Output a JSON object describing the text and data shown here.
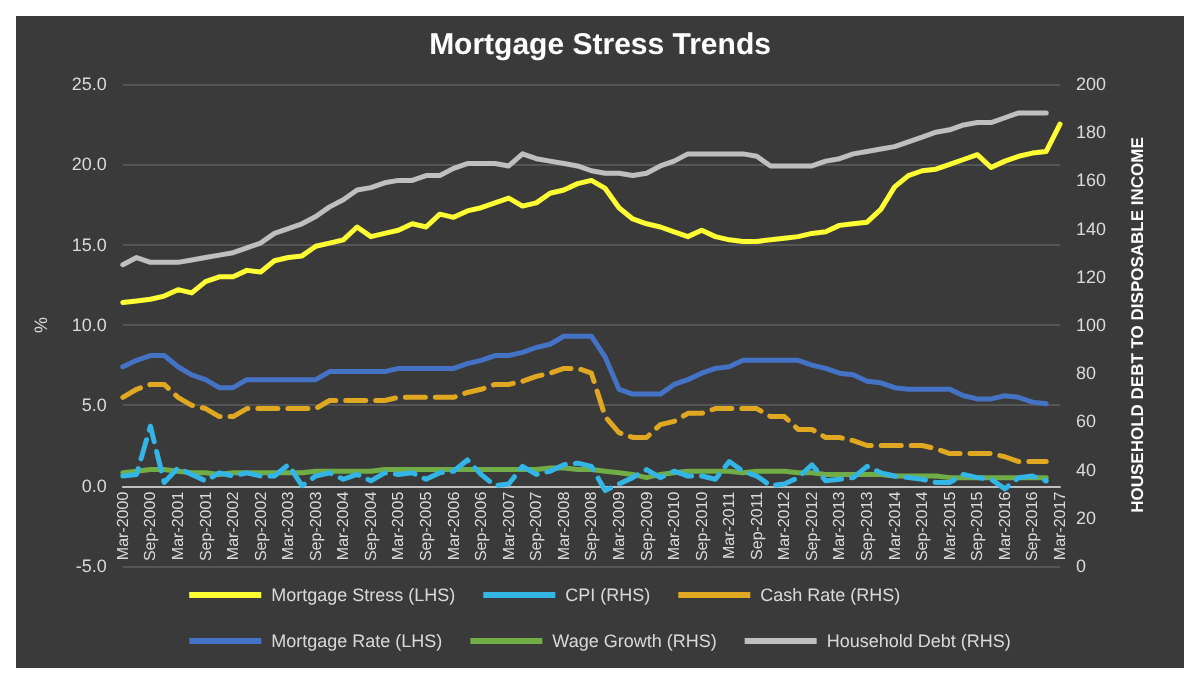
{
  "chart_data": {
    "type": "line",
    "title": "Mortgage Stress Trends",
    "ylabel": "%",
    "y2label": "HOUSEHOLD DEBT TO DISPOSABLE INCOME",
    "categories": [
      "Mar-2000",
      null,
      "Sep-2000",
      null,
      "Mar-2001",
      null,
      "Sep-2001",
      null,
      "Mar-2002",
      null,
      "Sep-2002",
      null,
      "Mar-2003",
      null,
      "Sep-2003",
      null,
      "Mar-2004",
      null,
      "Sep-2004",
      null,
      "Mar-2005",
      null,
      "Sep-2005",
      null,
      "Mar-2006",
      null,
      "Sep-2006",
      null,
      "Mar-2007",
      null,
      "Sep-2007",
      null,
      "Mar-2008",
      null,
      "Sep-2008",
      null,
      "Mar-2009",
      null,
      "Sep-2009",
      null,
      "Mar-2010",
      null,
      "Sep-2010",
      null,
      "Mar-2011",
      null,
      "Sep-2011",
      null,
      "Mar-2012",
      null,
      "Sep-2012",
      null,
      "Mar-2013",
      null,
      "Sep-2013",
      null,
      "Mar-2014",
      null,
      "Sep-2014",
      null,
      "Mar-2015",
      null,
      "Sep-2015",
      null,
      "Mar-2016",
      null,
      "Sep-2016",
      null,
      "Mar-2017"
    ],
    "series": [
      {
        "name": "Mortgage Stress (LHS)",
        "color": "#ffff33",
        "values": [
          11.4,
          11.5,
          11.6,
          11.8,
          12.2,
          12.0,
          12.7,
          13.0,
          13.0,
          13.4,
          13.3,
          14.0,
          14.2,
          14.3,
          14.9,
          15.1,
          15.3,
          16.1,
          15.5,
          15.7,
          15.9,
          16.3,
          16.1,
          16.9,
          16.7,
          17.1,
          17.3,
          17.6,
          17.9,
          17.4,
          17.6,
          18.2,
          18.4,
          18.8,
          19.0,
          18.5,
          17.3,
          16.6,
          16.3,
          16.1,
          15.8,
          15.5,
          15.9,
          15.5,
          15.3,
          15.2,
          15.2,
          15.3,
          15.4,
          15.5,
          15.7,
          15.8,
          16.2,
          16.3,
          16.4,
          17.2,
          18.6,
          19.3,
          19.6,
          19.7,
          20.0,
          20.3,
          20.6,
          19.8,
          20.2,
          20.5,
          20.7,
          20.8,
          22.5
        ]
      },
      {
        "name": "CPI (RHS)",
        "color": "#33b5e5",
        "line_style": "dashed",
        "values": [
          0.6,
          0.7,
          3.7,
          0.2,
          1.1,
          0.7,
          0.3,
          0.8,
          0.6,
          0.8,
          0.6,
          0.6,
          1.3,
          0.0,
          0.6,
          0.8,
          0.4,
          0.7,
          0.3,
          0.8,
          0.7,
          0.8,
          0.4,
          0.8,
          0.9,
          1.6,
          0.7,
          0.0,
          0.1,
          1.2,
          0.7,
          0.9,
          1.3,
          1.4,
          1.2,
          -0.3,
          0.1,
          0.5,
          1.0,
          0.5,
          0.9,
          0.6,
          0.6,
          0.4,
          1.5,
          0.9,
          0.6,
          0.0,
          0.1,
          0.5,
          1.3,
          0.3,
          0.4,
          0.5,
          1.2,
          0.8,
          0.6,
          0.5,
          0.4,
          0.2,
          0.2,
          0.7,
          0.5,
          0.4,
          -0.2,
          0.5,
          0.6,
          0.3,
          null
        ]
      },
      {
        "name": "Cash Rate (RHS)",
        "color": "#e0a820",
        "line_style": "dashed",
        "values": [
          5.5,
          6.0,
          6.3,
          6.3,
          5.5,
          5.0,
          4.8,
          4.3,
          4.3,
          4.8,
          4.8,
          4.8,
          4.8,
          4.8,
          4.8,
          5.3,
          5.3,
          5.3,
          5.3,
          5.3,
          5.5,
          5.5,
          5.5,
          5.5,
          5.5,
          5.8,
          6.0,
          6.3,
          6.3,
          6.5,
          6.8,
          7.0,
          7.3,
          7.3,
          7.0,
          4.3,
          3.3,
          3.0,
          3.0,
          3.8,
          4.0,
          4.5,
          4.5,
          4.8,
          4.8,
          4.8,
          4.8,
          4.3,
          4.3,
          3.5,
          3.5,
          3.0,
          3.0,
          2.8,
          2.5,
          2.5,
          2.5,
          2.5,
          2.5,
          2.3,
          2.0,
          2.0,
          2.0,
          2.0,
          1.8,
          1.5,
          1.5,
          1.5,
          null
        ]
      },
      {
        "name": "Mortgage Rate (LHS)",
        "color": "#4472c4",
        "values": [
          7.4,
          7.8,
          8.1,
          8.1,
          7.4,
          6.9,
          6.6,
          6.1,
          6.1,
          6.6,
          6.6,
          6.6,
          6.6,
          6.6,
          6.6,
          7.1,
          7.1,
          7.1,
          7.1,
          7.1,
          7.3,
          7.3,
          7.3,
          7.3,
          7.3,
          7.6,
          7.8,
          8.1,
          8.1,
          8.3,
          8.6,
          8.8,
          9.3,
          9.3,
          9.3,
          8.0,
          6.0,
          5.7,
          5.7,
          5.7,
          6.3,
          6.6,
          7.0,
          7.3,
          7.4,
          7.8,
          7.8,
          7.8,
          7.8,
          7.8,
          7.5,
          7.3,
          7.0,
          6.9,
          6.5,
          6.4,
          6.1,
          6.0,
          6.0,
          6.0,
          6.0,
          5.6,
          5.4,
          5.4,
          5.6,
          5.5,
          5.2,
          5.1,
          null
        ]
      },
      {
        "name": "Wage Growth (RHS)",
        "color": "#70ad47",
        "values": [
          0.8,
          0.9,
          1.0,
          1.0,
          0.9,
          0.8,
          0.8,
          0.7,
          0.8,
          0.8,
          0.8,
          0.8,
          0.8,
          0.8,
          0.9,
          0.9,
          0.9,
          0.9,
          0.9,
          1.0,
          1.0,
          1.0,
          1.0,
          1.0,
          1.0,
          1.0,
          1.0,
          1.0,
          1.0,
          1.0,
          1.0,
          1.1,
          1.1,
          1.0,
          1.0,
          0.9,
          0.8,
          0.7,
          0.5,
          0.7,
          0.8,
          0.9,
          0.9,
          0.9,
          0.9,
          0.8,
          0.9,
          0.9,
          0.9,
          0.8,
          0.8,
          0.7,
          0.7,
          0.7,
          0.7,
          0.7,
          0.6,
          0.6,
          0.6,
          0.6,
          0.5,
          0.5,
          0.5,
          0.5,
          0.5,
          0.5,
          0.5,
          0.5,
          null
        ]
      },
      {
        "name": "Household Debt (RHS)",
        "color": "#bfbfbf",
        "axis": "y2",
        "values": [
          125,
          128,
          126,
          126,
          126,
          127,
          128,
          129,
          130,
          132,
          134,
          138,
          140,
          142,
          145,
          149,
          152,
          156,
          157,
          159,
          160,
          160,
          162,
          162,
          165,
          167,
          167,
          167,
          166,
          171,
          169,
          168,
          167,
          166,
          164,
          163,
          163,
          162,
          163,
          166,
          168,
          171,
          171,
          171,
          171,
          171,
          170,
          166,
          166,
          166,
          166,
          168,
          169,
          171,
          172,
          173,
          174,
          176,
          178,
          180,
          181,
          183,
          184,
          184,
          186,
          188,
          188,
          188,
          null
        ]
      }
    ],
    "ylim": [
      -5,
      25
    ],
    "yticks": [
      {
        "value": -5,
        "label": "-5.0"
      },
      {
        "value": 0,
        "label": "0.0"
      },
      {
        "value": 5,
        "label": "5.0"
      },
      {
        "value": 10,
        "label": "10.0"
      },
      {
        "value": 15,
        "label": "15.0"
      },
      {
        "value": 20,
        "label": "20.0"
      },
      {
        "value": 25,
        "label": "25.0"
      }
    ],
    "y2lim": [
      0,
      200
    ],
    "y2ticks": [
      0,
      20,
      40,
      60,
      80,
      100,
      120,
      140,
      160,
      180,
      200
    ],
    "grid": "y",
    "legend": "bottom",
    "marker": "none",
    "line_style": "solid"
  }
}
